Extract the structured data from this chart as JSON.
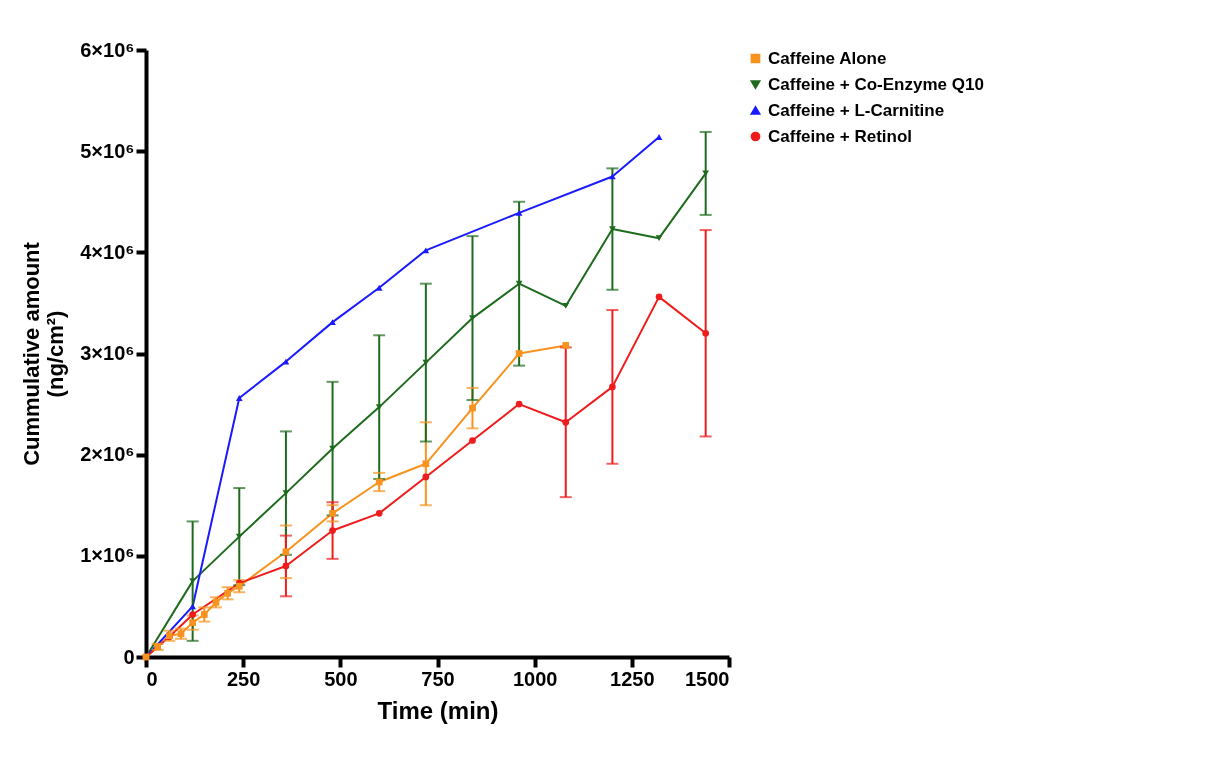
{
  "chart_data": {
    "type": "line",
    "xlabel": "Time (min)",
    "ylabel": "Cummulative amount (ng/cm²)",
    "xlim": [
      0,
      1500
    ],
    "xticks": [
      0,
      250,
      500,
      750,
      1000,
      1250,
      1500
    ],
    "ylim": [
      0,
      6000000
    ],
    "yticks": [
      {
        "value": 0,
        "label": "0"
      },
      {
        "value": 1000000,
        "label": "1×10⁶"
      },
      {
        "value": 2000000,
        "label": "2×10⁶"
      },
      {
        "value": 3000000,
        "label": "3×10⁶"
      },
      {
        "value": 4000000,
        "label": "4×10⁶"
      },
      {
        "value": 5000000,
        "label": "5×10⁶"
      },
      {
        "value": 6000000,
        "label": "6×10⁶"
      }
    ],
    "grid": false,
    "legend": "top right",
    "line_style": "solid",
    "series": [
      {
        "name": "Caffeine Alone",
        "color": "#f7931e",
        "marker": "square",
        "x": [
          0,
          30,
          60,
          90,
          120,
          150,
          180,
          210,
          240,
          360,
          480,
          600,
          720,
          840,
          960,
          1080
        ],
        "values": [
          0,
          100000,
          210000,
          230000,
          340000,
          420000,
          540000,
          630000,
          700000,
          1040000,
          1420000,
          1730000,
          1910000,
          2460000,
          3000000,
          3080000
        ],
        "errors": [
          null,
          30000,
          50000,
          50000,
          70000,
          70000,
          50000,
          60000,
          60000,
          260000,
          80000,
          90000,
          410000,
          200000,
          null,
          null
        ]
      },
      {
        "name": "Caffeine + Co-Enzyme Q10",
        "color": "#1e6b1e",
        "marker": "triangle-down",
        "x": [
          0,
          120,
          240,
          360,
          480,
          600,
          720,
          840,
          960,
          1080,
          1200,
          1320,
          1440
        ],
        "values": [
          0,
          750000,
          1190000,
          1620000,
          2060000,
          2470000,
          2910000,
          3350000,
          3690000,
          3470000,
          4230000,
          4140000,
          4780000
        ],
        "errors": [
          null,
          590000,
          480000,
          610000,
          660000,
          710000,
          780000,
          810000,
          810000,
          null,
          600000,
          null,
          410000
        ]
      },
      {
        "name": "Caffeine + L-Carnitine",
        "color": "#1a1aff",
        "marker": "triangle",
        "x": [
          0,
          120,
          240,
          360,
          480,
          600,
          720,
          960,
          1200,
          1320
        ],
        "values": [
          0,
          500000,
          2560000,
          2920000,
          3310000,
          3650000,
          4020000,
          4390000,
          4750000,
          5140000
        ]
      },
      {
        "name": "Caffeine + Retinol",
        "color": "#ee1c1c",
        "marker": "circle",
        "x": [
          0,
          60,
          120,
          240,
          360,
          480,
          600,
          720,
          840,
          960,
          1080,
          1200,
          1320,
          1440
        ],
        "values": [
          0,
          200000,
          420000,
          730000,
          900000,
          1250000,
          1420000,
          1780000,
          2140000,
          2500000,
          2320000,
          2670000,
          3560000,
          3200000
        ],
        "errors": [
          null,
          null,
          null,
          null,
          300000,
          280000,
          null,
          null,
          null,
          null,
          740000,
          760000,
          null,
          1020000
        ]
      }
    ]
  }
}
